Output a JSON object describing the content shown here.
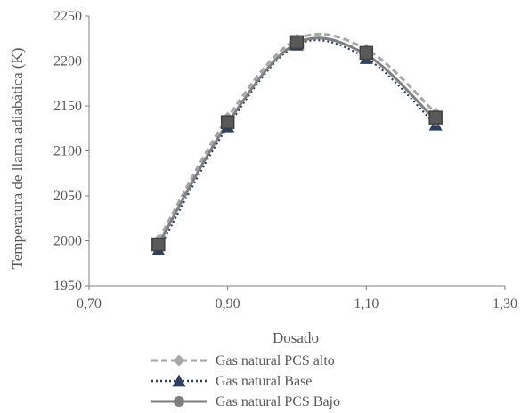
{
  "chart_data": {
    "type": "line",
    "title": "",
    "xlabel": "Dosado",
    "ylabel": "Temperatura de llama adiabática (K)",
    "xlim": [
      0.7,
      1.3
    ],
    "ylim": [
      1950,
      2250
    ],
    "x_ticks": [
      "0,70",
      "0,90",
      "1,10",
      "1,30"
    ],
    "x_tick_values": [
      0.7,
      0.9,
      1.1,
      1.3
    ],
    "y_ticks": [
      "1950",
      "2000",
      "2050",
      "2100",
      "2150",
      "2200",
      "2250"
    ],
    "y_tick_values": [
      1950,
      2000,
      2050,
      2100,
      2150,
      2200,
      2250
    ],
    "grid": false,
    "legend_position": "bottom",
    "x": [
      0.8,
      0.9,
      1.0,
      1.1,
      1.2
    ],
    "series": [
      {
        "name": "Gas natural PCS alto",
        "values": [
          2001,
          2137,
          2224,
          2213,
          2142
        ],
        "color": "#a6a6a6",
        "line": "dashed",
        "marker": "diamond"
      },
      {
        "name": "Gas natural Base",
        "values": [
          1990,
          2127,
          2218,
          2203,
          2129
        ],
        "color": "#2e3f5c",
        "line": "dotted",
        "marker": "triangle"
      },
      {
        "name": "Gas natural PCS Bajo",
        "values": [
          1996,
          2131,
          2220,
          2207,
          2134
        ],
        "color": "#7f7f7f",
        "line": "solid",
        "marker": "circle"
      }
    ],
    "overlay_markers": {
      "marker": "square",
      "color": "#595959",
      "values": [
        1996,
        2132,
        2221,
        2209,
        2137
      ]
    }
  }
}
